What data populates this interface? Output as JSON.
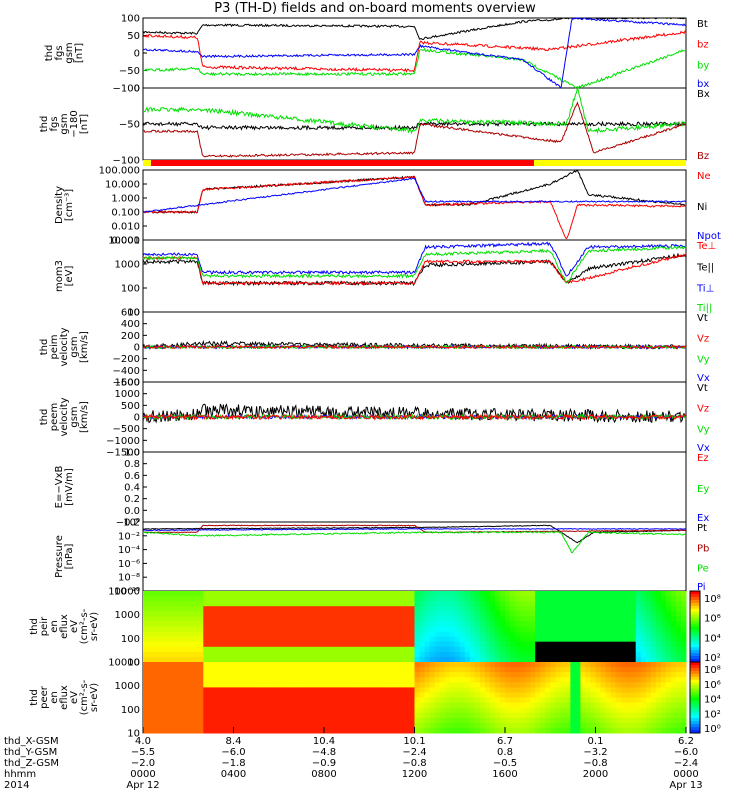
{
  "title": "P3 (TH-D) fields and on-board moments overview",
  "chart_data": [
    {
      "type": "line",
      "ylabel": [
        "thd",
        "fgs",
        "gsm",
        "[nT]"
      ],
      "ylim": [
        -100,
        100
      ],
      "yticks": [
        "100",
        "50",
        "0",
        "−50",
        "−100"
      ],
      "legend": [
        {
          "name": "Bt",
          "color": "#000000"
        },
        {
          "name": "bz",
          "color": "#ff0000"
        },
        {
          "name": "by",
          "color": "#00e000"
        },
        {
          "name": "bx",
          "color": "#0000ff"
        }
      ]
    },
    {
      "type": "line",
      "ylabel": [
        "thd",
        "fgs",
        "gsm",
        "−180",
        "[nT]"
      ],
      "ylim": [
        -120,
        20
      ],
      "yticks": [
        "0",
        "−50",
        "−100"
      ],
      "legend": [
        {
          "name": "Bx",
          "color": "#000000"
        },
        {
          "name": "Bz",
          "color": "#aa0000"
        }
      ]
    },
    {
      "type": "line",
      "ylabel": [
        "Density",
        "[cm⁻³]"
      ],
      "ylim": [
        0.001,
        100
      ],
      "log": true,
      "yticks": [
        "100.000",
        "10.000",
        "1.000",
        "0.100",
        "0.010",
        "0.001"
      ],
      "legend": [
        {
          "name": "Ne",
          "color": "#ff0000"
        },
        {
          "name": "Ni",
          "color": "#000000"
        },
        {
          "name": "Npot",
          "color": "#0000ff"
        }
      ]
    },
    {
      "type": "line",
      "ylabel": [
        "mom3",
        "[eV]"
      ],
      "log": true,
      "yticks": [
        "10000",
        "1000",
        "100",
        "10"
      ],
      "legend": [
        {
          "name": "Te⊥",
          "color": "#ff0000"
        },
        {
          "name": "Te||",
          "color": "#000000"
        },
        {
          "name": "Ti⊥",
          "color": "#0000ff"
        },
        {
          "name": "Ti||",
          "color": "#00e000"
        }
      ]
    },
    {
      "type": "line",
      "ylabel": [
        "thd",
        "peim",
        "velocity",
        "gsm",
        "[km/s]"
      ],
      "ylim": [
        -600,
        600
      ],
      "yticks": [
        "600",
        "400",
        "200",
        "0",
        "−200",
        "−400",
        "−600"
      ],
      "legend": [
        {
          "name": "Vt",
          "color": "#000000"
        },
        {
          "name": "Vz",
          "color": "#ff0000"
        },
        {
          "name": "Vy",
          "color": "#00e000"
        },
        {
          "name": "Vx",
          "color": "#0000ff"
        }
      ]
    },
    {
      "type": "line",
      "ylabel": [
        "thd",
        "peem",
        "velocity",
        "gsm",
        "[km/s]"
      ],
      "ylim": [
        -1500,
        1500
      ],
      "yticks": [
        "1500",
        "1000",
        "500",
        "0",
        "−500",
        "−1000",
        "−1500"
      ],
      "legend": [
        {
          "name": "Vt",
          "color": "#000000"
        },
        {
          "name": "Vz",
          "color": "#ff0000"
        },
        {
          "name": "Vy",
          "color": "#00e000"
        },
        {
          "name": "Vx",
          "color": "#0000ff"
        }
      ]
    },
    {
      "type": "line",
      "ylabel": [
        "E=−VxB",
        "[mV/m]"
      ],
      "ylim": [
        -0.2,
        1.0
      ],
      "yticks": [
        "1.0",
        "0.8",
        "0.6",
        "0.4",
        "0.2",
        "0.0",
        "−0.2"
      ],
      "legend": [
        {
          "name": "Ez",
          "color": "#ff0000"
        },
        {
          "name": "Ey",
          "color": "#00e000"
        },
        {
          "name": "Ex",
          "color": "#0000ff"
        }
      ]
    },
    {
      "type": "line",
      "ylabel": [
        "Pressure",
        "[nPa]"
      ],
      "log": true,
      "yticks": [
        "10⁰",
        "10⁻²",
        "10⁻⁴",
        "10⁻⁶",
        "10⁻⁸",
        "10⁻¹⁰"
      ],
      "legend": [
        {
          "name": "Pt",
          "color": "#000000"
        },
        {
          "name": "Pb",
          "color": "#aa0000"
        },
        {
          "name": "Pe",
          "color": "#00e000"
        },
        {
          "name": "Pi",
          "color": "#0000ff"
        }
      ]
    },
    {
      "type": "heatmap",
      "ylabel": [
        "thd",
        "peir",
        "en",
        "eflux",
        "eV",
        "(cm²-s-",
        "sr-eV)"
      ],
      "yticks": [
        "10000",
        "1000",
        "100",
        "10"
      ],
      "colorbar": [
        "10⁸",
        "10⁶",
        "10⁴",
        "10²"
      ]
    },
    {
      "type": "heatmap",
      "ylabel": [
        "thd",
        "peer",
        "en",
        "eflux",
        "eV",
        "(cm²-s-",
        "sr-eV)"
      ],
      "yticks": [
        "10000",
        "1000",
        "100",
        "10"
      ],
      "colorbar": [
        "10⁸",
        "10⁶",
        "10⁴",
        "10²",
        "10⁰"
      ]
    }
  ],
  "xaxis": {
    "rows": [
      {
        "label": "thd_X-GSM",
        "values": [
          "4.0",
          "8.4",
          "10.4",
          "10.1",
          "6.7",
          "0.1",
          "6.2"
        ]
      },
      {
        "label": "thd_Y-GSM",
        "values": [
          "−5.5",
          "−6.0",
          "−4.8",
          "−2.4",
          "0.8",
          "−3.2",
          "−6.0"
        ]
      },
      {
        "label": "thd_Z-GSM",
        "values": [
          "−2.0",
          "−1.8",
          "−0.9",
          "−0.8",
          "−0.5",
          "−0.8",
          "−2.4"
        ]
      },
      {
        "label": "hhmm",
        "values": [
          "0000",
          "0400",
          "0800",
          "1200",
          "1600",
          "2000",
          "0000"
        ]
      },
      {
        "label": "2014",
        "values": [
          "Apr 12",
          "",
          "",
          "",
          "",
          "",
          "Apr 13"
        ]
      }
    ]
  }
}
